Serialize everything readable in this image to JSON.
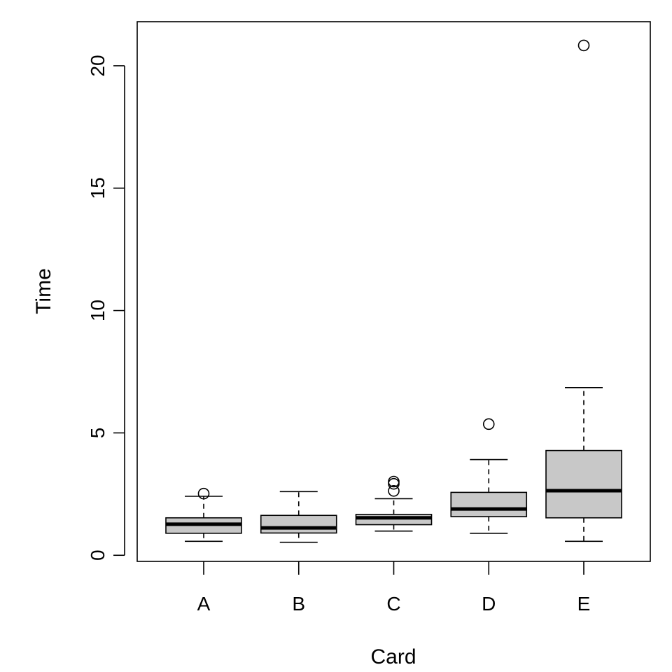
{
  "chart_data": {
    "type": "boxplot",
    "title": "",
    "xlabel": "Card",
    "ylabel": "Time",
    "ylim": [
      -0.25,
      21.8
    ],
    "yticks": [
      0,
      5,
      10,
      15,
      20
    ],
    "ytick_labels": [
      "0",
      "5",
      "10",
      "15",
      "20"
    ],
    "grid": false,
    "colors": {
      "box_fill": "#c8c8c8",
      "line": "#000000",
      "background": "#ffffff"
    },
    "categories": [
      "A",
      "B",
      "C",
      "D",
      "E"
    ],
    "boxes": [
      {
        "category": "A",
        "whisker_low": 0.57,
        "q1": 0.9,
        "median": 1.27,
        "q3": 1.53,
        "whisker_high": 2.41,
        "outliers": [
          2.52
        ]
      },
      {
        "category": "B",
        "whisker_low": 0.53,
        "q1": 0.91,
        "median": 1.12,
        "q3": 1.63,
        "whisker_high": 2.6,
        "outliers": []
      },
      {
        "category": "C",
        "whisker_low": 0.99,
        "q1": 1.25,
        "median": 1.53,
        "q3": 1.67,
        "whisker_high": 2.31,
        "outliers": [
          2.63,
          2.92,
          3.01
        ]
      },
      {
        "category": "D",
        "whisker_low": 0.9,
        "q1": 1.58,
        "median": 1.89,
        "q3": 2.57,
        "whisker_high": 3.91,
        "outliers": [
          5.36
        ]
      },
      {
        "category": "E",
        "whisker_low": 0.57,
        "q1": 1.53,
        "median": 2.64,
        "q3": 4.28,
        "whisker_high": 6.85,
        "outliers": [
          20.83
        ]
      }
    ]
  }
}
